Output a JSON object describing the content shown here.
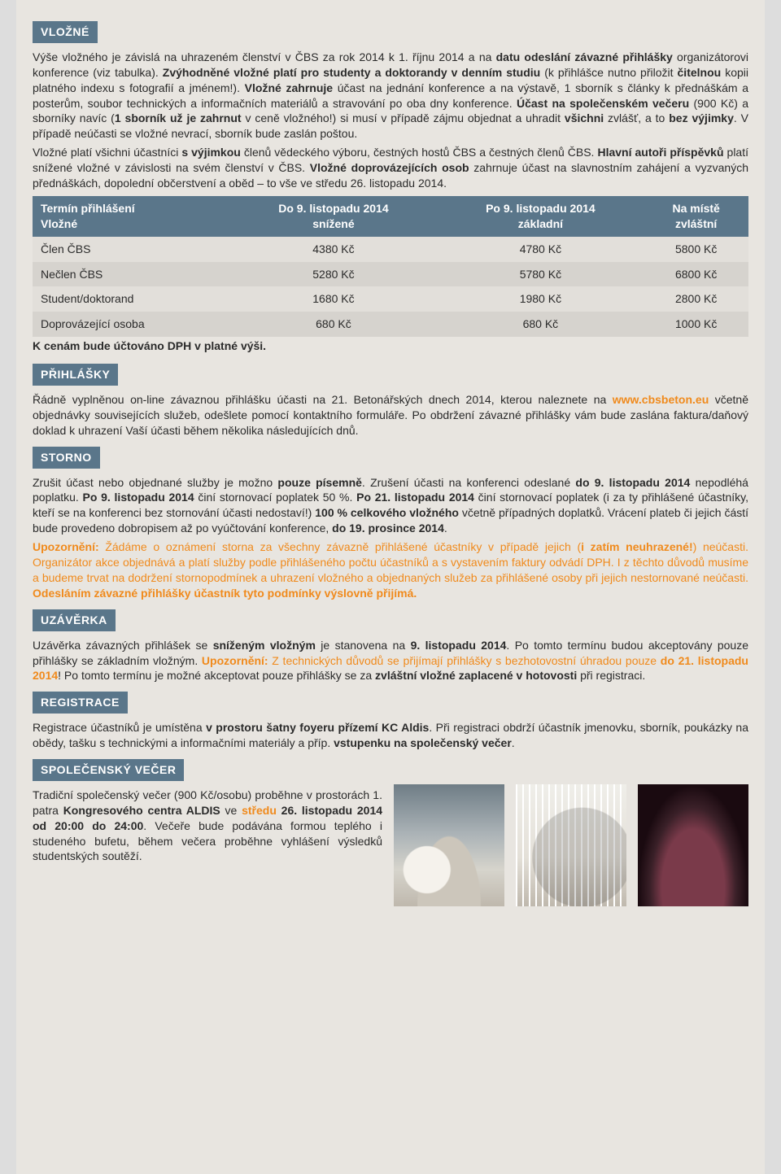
{
  "sections": {
    "vlozne": {
      "tag": "VLOŽNÉ",
      "p1_a": "Výše vložného je závislá na uhrazeném členství v ČBS za rok 2014 k 1. říjnu 2014 a na ",
      "p1_b": "datu odeslání závazné přihlášky",
      "p1_c": " organizátorovi konference (viz tabulka). ",
      "p1_d": "Zvýhodněné vložné platí pro studenty a doktorandy v denním studiu",
      "p1_e": " (k přihlášce nutno přiložit ",
      "p1_f": "čitelnou",
      "p1_g": " kopii platného indexu s fotografií a jménem!). ",
      "p1_h": "Vložné zahrnuje",
      "p1_i": " účast na jednání konference a na výstavě, 1 sborník s články k přednáškám a posterům, soubor technických a informačních materiálů a stravování po oba dny konference. ",
      "p1_j": "Účast na společenském večeru",
      "p1_k": " (900 Kč) a sborníky navíc (",
      "p1_l": "1 sborník už je zahrnut",
      "p1_m": " v ceně vložného!) si musí v případě zájmu objednat a uhradit ",
      "p1_n": "všichni",
      "p1_o": " zvlášť, a to ",
      "p1_p": "bez výjimky",
      "p1_q": ". V případě neúčasti se vložné nevrací, sborník bude zaslán poštou.",
      "p2_a": "Vložné platí všichni účastníci ",
      "p2_b": "s výjimkou",
      "p2_c": " členů vědeckého výboru, čestných hostů ČBS a čestných členů ČBS. ",
      "p2_d": "Hlavní autoři příspěvků",
      "p2_e": " platí snížené vložné v závislosti na svém členství v ČBS. ",
      "p2_f": "Vložné doprovázejících osob",
      "p2_g": " zahrnuje účast na slavnostním zahájení a vyzvaných přednáškách, dopolední občerstvení a oběd – to vše ve středu 26. listopadu 2014."
    },
    "table": {
      "h1a": "Termín přihlášení",
      "h1b": "Vložné",
      "h2a": "Do 9. listopadu 2014",
      "h2b": "snížené",
      "h3a": "Po 9. listopadu 2014",
      "h3b": "základní",
      "h4a": "Na místě",
      "h4b": "zvláštní",
      "r1c1": "Člen ČBS",
      "r1c2": "4380 Kč",
      "r1c3": "4780 Kč",
      "r1c4": "5800 Kč",
      "r2c1": "Nečlen ČBS",
      "r2c2": "5280 Kč",
      "r2c3": "5780 Kč",
      "r2c4": "6800 Kč",
      "r3c1": "Student/doktorand",
      "r3c2": "1680 Kč",
      "r3c3": "1980 Kč",
      "r3c4": "2800 Kč",
      "r4c1": "Doprovázející osoba",
      "r4c2": "680 Kč",
      "r4c3": "680 Kč",
      "r4c4": "1000 Kč",
      "note": "K cenám bude účtováno DPH v platné výši."
    },
    "prihlasky": {
      "tag": "PŘIHLÁŠKY",
      "a": "Řádně vyplněnou on-line závaznou přihlášku účasti na 21. Betonářských dnech 2014, kterou naleznete na ",
      "link": "www.cbsbeton.eu",
      "b": " včetně objednávky souvisejících služeb, odešlete pomocí kontaktního formuláře. Po obdržení závazné přihlášky vám bude zaslána faktura/daňový doklad k uhrazení Vaší účasti během několika následujících dnů."
    },
    "storno": {
      "tag": "STORNO",
      "p1_a": "Zrušit účast nebo objednané služby je možno ",
      "p1_b": "pouze písemně",
      "p1_c": ". Zrušení účasti na konferenci odeslané ",
      "p1_d": "do 9. listopadu 2014",
      "p1_e": " nepodléhá poplatku. ",
      "p1_f": "Po 9. listopadu 2014",
      "p1_g": " činí stornovací poplatek 50 %. ",
      "p1_h": "Po 21. listopadu 2014",
      "p1_i": " činí stornovací poplatek (i za ty přihlášené účastníky, kteří se na konferenci bez stornování účasti nedostaví!) ",
      "p1_j": "100 % celkového vložného",
      "p1_k": " včetně případných doplatků. Vrácení plateb či jejich částí bude provedeno dobropisem až po vyúčtování konference, ",
      "p1_l": "do 19. prosince 2014",
      "p1_m": ".",
      "p2_a": "Upozornění:",
      "p2_b": " Žádáme o oznámení storna za všechny závazně přihlášené účastníky v případě jejich (",
      "p2_c": "i zatím neuhrazené!",
      "p2_d": ") neúčasti. Organizátor akce objednává a platí služby podle přihlášeného počtu účastníků a s vystavením faktury odvádí DPH. ",
      "p2_e": "I z těchto důvodů musíme a budeme trvat na dodržení stornopodmínek a uhrazení vložného a objednaných služeb za přihlášené osoby při jejich nestornované neúčasti. ",
      "p2_f": "Odesláním závazné přihlášky účastník tyto podmínky výslovně přijímá."
    },
    "uzaverka": {
      "tag": "UZÁVĚRKA",
      "a": "Uzávěrka závazných přihlášek se ",
      "b": "sníženým vložným",
      "c": " je stanovena na ",
      "d": "9. listopadu 2014",
      "e": ". Po tomto termínu budou akceptovány pouze přihlášky se základním vložným. ",
      "f": "Upozornění:",
      "g": " Z technických důvodů se přijímají přihlášky s bezhotovostní úhradou pouze ",
      "h": "do 21. listopadu 2014",
      "i": "! Po tomto termínu je možné akceptovat pouze přihlášky se za ",
      "j": "zvláštní vložné zaplacené v hotovosti",
      "k": " při registraci."
    },
    "registrace": {
      "tag": "REGISTRACE",
      "a": "Registrace účastníků je umístěna ",
      "b": "v prostoru šatny foyeru přízemí KC Aldis",
      "c": ". Při registraci obdrží účastník jmenovku, sborník, poukázky na obědy, tašku s technickými a informačními materiály a příp. ",
      "d": "vstupenku na společenský večer",
      "e": "."
    },
    "vecer": {
      "tag": "SPOLEČENSKÝ VEČER",
      "a": "Tradiční společenský večer (900 Kč/osobu) proběhne v prostorách 1. patra ",
      "b": "Kongresového centra ALDIS",
      "c": " ve ",
      "d": "středu",
      "e": " ",
      "f": "26. listopadu 2014 od 20:00 do 24:00",
      "g": ". Večeře bude podávána formou teplého i studeného bufetu, během večera proběhne vyhlášení výsledků studentských soutěží."
    }
  }
}
